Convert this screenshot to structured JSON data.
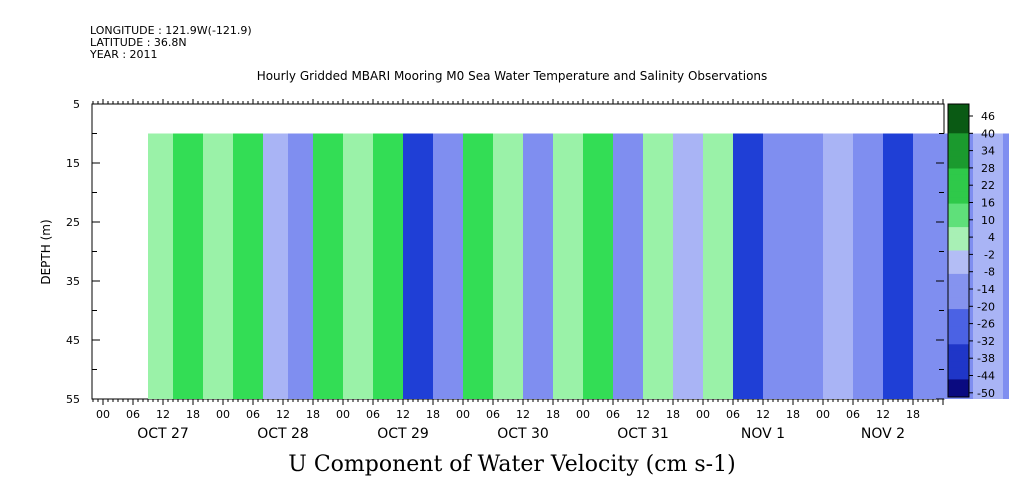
{
  "header": {
    "longitude": "LONGITUDE : 121.9W(-121.9)",
    "latitude": "LATITUDE : 36.8N",
    "year": "YEAR : 2011"
  },
  "title": "Hourly Gridded MBARI Mooring M0 Sea Water Temperature and Salinity Observations",
  "bottom_title": "U Component of Water Velocity (cm s-1)",
  "chart_data": {
    "type": "heatmap",
    "title": "Hourly Gridded MBARI Mooring M0 Sea Water Temperature and Salinity Observations",
    "xlabel": "",
    "ylabel": "DEPTH (m)",
    "ylim": [
      55,
      5
    ],
    "y_ticks": [
      5,
      15,
      25,
      35,
      45,
      55
    ],
    "x_hour_ticks": [
      "00",
      "06",
      "12",
      "18",
      "00",
      "06",
      "12",
      "18",
      "00",
      "06",
      "12",
      "18",
      "00",
      "06",
      "12",
      "18",
      "00",
      "06",
      "12",
      "18",
      "00",
      "06",
      "12",
      "18",
      "00",
      "06",
      "12",
      "18"
    ],
    "x_day_labels": [
      "OCT 27",
      "OCT 28",
      "OCT 29",
      "OCT 30",
      "OCT 31",
      "NOV 1",
      "NOV 2"
    ],
    "data_depth_range": [
      10,
      55
    ],
    "data_start_hour": 3,
    "colorbar": {
      "labels": [
        "46",
        "40",
        "34",
        "28",
        "22",
        "16",
        "10",
        "4",
        "-2",
        "-8",
        "-14",
        "-20",
        "-26",
        "-32",
        "-38",
        "-44",
        "-50"
      ],
      "min": -50,
      "max": 50
    },
    "profile_columns": [
      {
        "hour": 3,
        "u": 2
      },
      {
        "hour": 8,
        "u": 10
      },
      {
        "hour": 14,
        "u": 6
      },
      {
        "hour": 20,
        "u": 12
      },
      {
        "hour": 26,
        "u": -8
      },
      {
        "hour": 31,
        "u": -14
      },
      {
        "hour": 36,
        "u": 12
      },
      {
        "hour": 42,
        "u": 4
      },
      {
        "hour": 48,
        "u": 10
      },
      {
        "hour": 54,
        "u": -22
      },
      {
        "hour": 60,
        "u": -12
      },
      {
        "hour": 66,
        "u": 14
      },
      {
        "hour": 72,
        "u": 4
      },
      {
        "hour": 78,
        "u": -10
      },
      {
        "hour": 84,
        "u": 8
      },
      {
        "hour": 90,
        "u": 12
      },
      {
        "hour": 96,
        "u": -16
      },
      {
        "hour": 102,
        "u": 6
      },
      {
        "hour": 108,
        "u": -8
      },
      {
        "hour": 114,
        "u": 2
      },
      {
        "hour": 120,
        "u": -26
      },
      {
        "hour": 126,
        "u": -16
      },
      {
        "hour": 132,
        "u": -10
      },
      {
        "hour": 138,
        "u": -6
      },
      {
        "hour": 144,
        "u": -12
      },
      {
        "hour": 150,
        "u": -26
      },
      {
        "hour": 156,
        "u": -18
      },
      {
        "hour": 162,
        "u": -12
      },
      {
        "hour": 168,
        "u": -8
      },
      {
        "hour": 174,
        "u": -12
      },
      {
        "hour": 180,
        "u": -18
      },
      {
        "hour": 186,
        "u": -8
      },
      {
        "hour": 192,
        "u": 4
      },
      {
        "hour": 197,
        "u": -10
      },
      {
        "hour": 200,
        "u": 2
      }
    ],
    "colors": {
      "strong_pos": "#006400",
      "pos": "#33dd55",
      "weak_pos": "#9af2a8",
      "weak_neg": "#a9b4f5",
      "neg": "#7f8ef0",
      "strong_neg": "#1f3fd6",
      "min": "#0a0a80"
    }
  }
}
